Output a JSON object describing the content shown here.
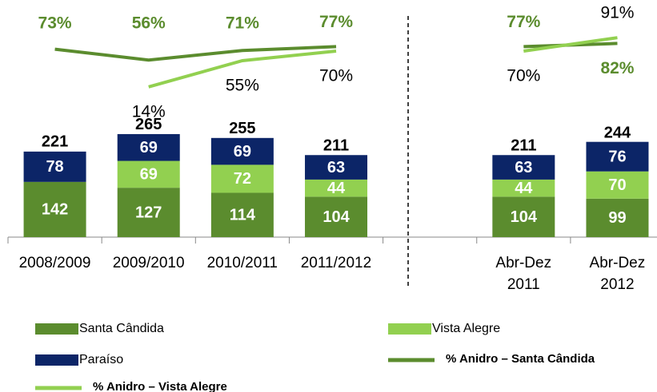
{
  "chart_data": {
    "type": "bar",
    "categories": [
      "2008/2009",
      "2009/2010",
      "2010/2011",
      "2011/2012",
      null,
      "Abr-Dez\n2011",
      "Abr-Dez\n2012"
    ],
    "series": [
      {
        "name": "Santa Cândida",
        "color": "#5b8c2e",
        "values": [
          142,
          127,
          114,
          104,
          null,
          104,
          99
        ]
      },
      {
        "name": "Vista Alegre",
        "color": "#92d050",
        "values": [
          null,
          69,
          72,
          44,
          null,
          44,
          70
        ]
      },
      {
        "name": "Paraíso",
        "color": "#0c2567",
        "values": [
          78,
          69,
          69,
          63,
          null,
          63,
          76
        ]
      },
      {
        "name": "% Anidro – Santa Cândida",
        "type": "line",
        "color": "#5b8c2e",
        "values": [
          73,
          56,
          71,
          77,
          null,
          77,
          82
        ],
        "value_labels": [
          "73%",
          "56%",
          "71%",
          "77%",
          null,
          "77%",
          "82%"
        ]
      },
      {
        "name": "% Anidro – Vista Alegre",
        "type": "line",
        "color": "#92d050",
        "values": [
          null,
          14,
          55,
          70,
          null,
          70,
          91
        ],
        "value_labels": [
          null,
          "14%",
          "55%",
          "70%",
          null,
          "70%",
          "91%"
        ]
      }
    ],
    "totals": [
      221,
      265,
      255,
      211,
      null,
      211,
      244
    ]
  }
}
